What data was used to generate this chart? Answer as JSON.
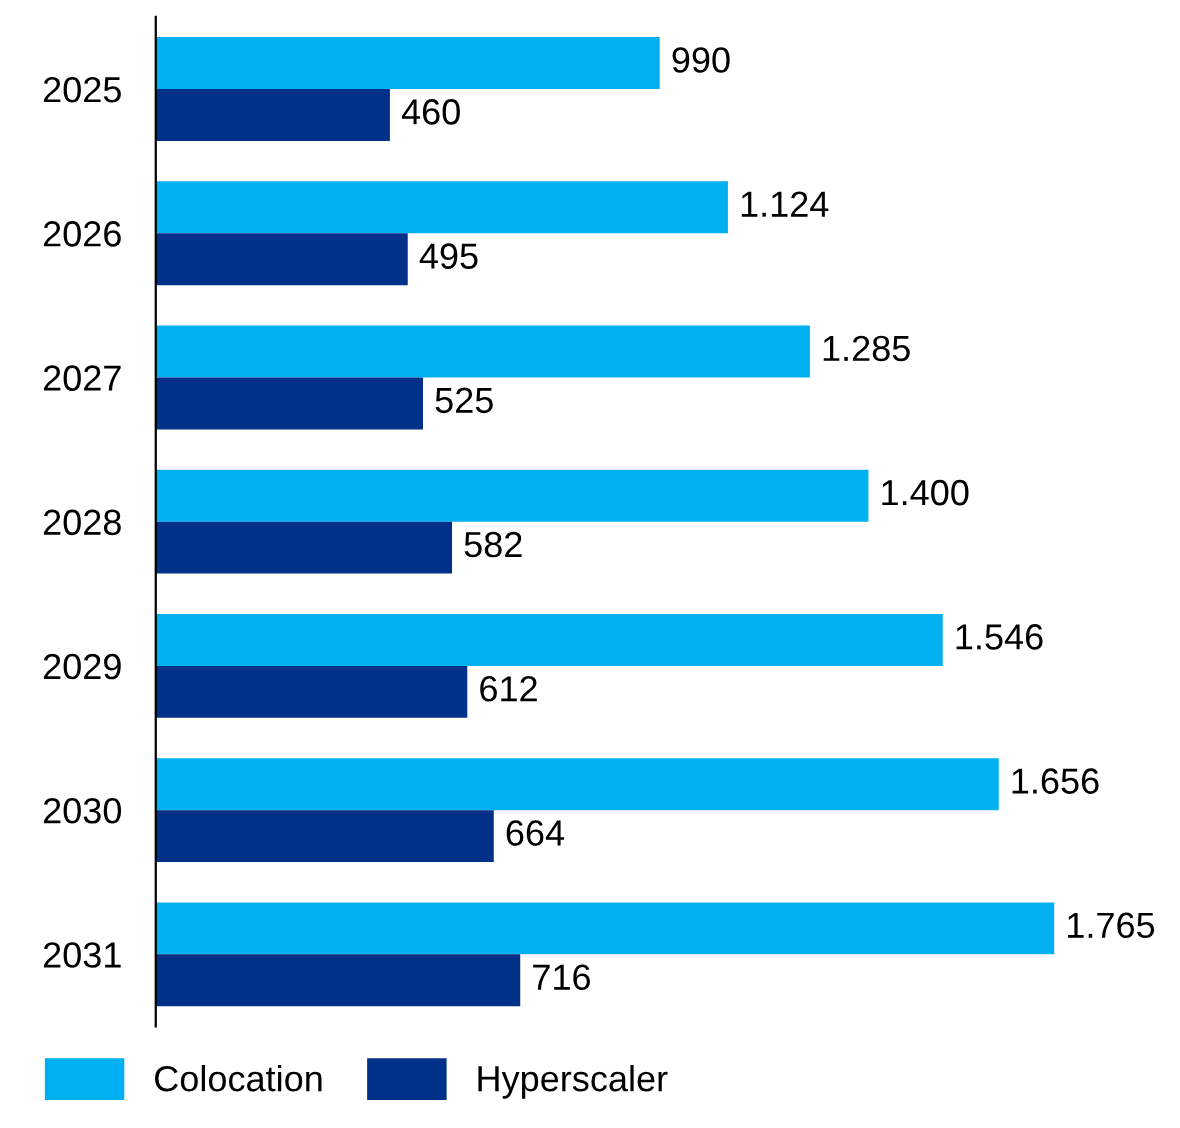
{
  "chart_data": {
    "type": "bar",
    "orientation": "horizontal",
    "categories": [
      "2025",
      "2026",
      "2027",
      "2028",
      "2029",
      "2030",
      "2031"
    ],
    "series": [
      {
        "name": "Colocation",
        "color": "#00b0f0",
        "values": [
          990,
          1124,
          1285,
          1400,
          1546,
          1656,
          1765
        ],
        "value_labels": [
          "990",
          "1.124",
          "1.285",
          "1.400",
          "1.546",
          "1.656",
          "1.765"
        ]
      },
      {
        "name": "Hyperscaler",
        "color": "#003087",
        "values": [
          460,
          495,
          525,
          582,
          612,
          664,
          716
        ],
        "value_labels": [
          "460",
          "495",
          "525",
          "582",
          "612",
          "664",
          "716"
        ]
      }
    ],
    "tick_labels": "y",
    "grid": false,
    "legend": "bottom left"
  }
}
